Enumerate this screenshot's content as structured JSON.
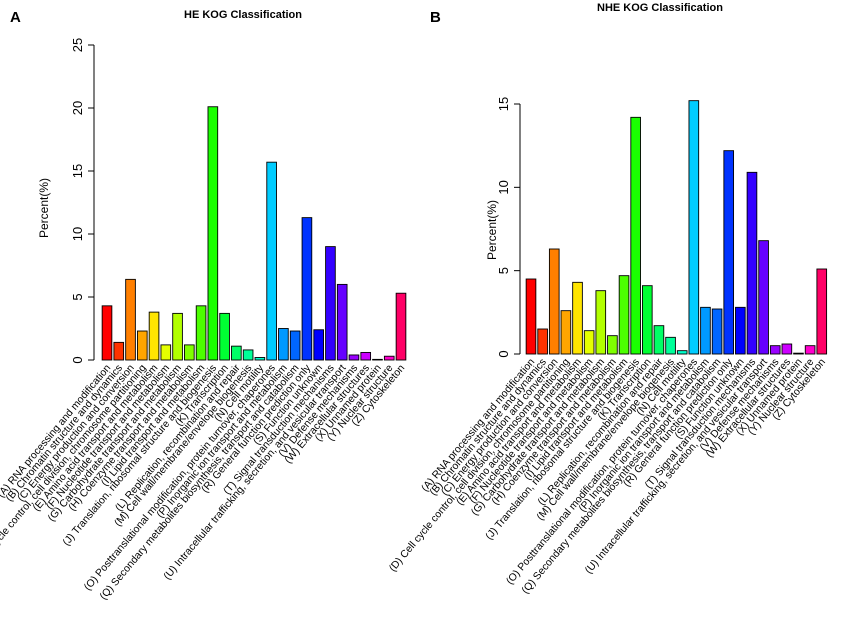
{
  "chart_data": [
    {
      "type": "bar",
      "panel_label": "A",
      "title": "HE KOG Classification",
      "xlabel": "",
      "ylabel": "Percent(%)",
      "ylim": [
        0,
        25
      ],
      "yticks": [
        "0",
        "5",
        "10",
        "15",
        "20",
        "25"
      ],
      "categories": [
        "(A) RNA processing and modification",
        "(B) Chromatin structure and dynamics",
        "(C) Energy production and conversion",
        "(D) Cell cycle control, cell division, chromosome partitioning",
        "(E) Amino acid transport and metabolism",
        "(F) Nucleotide transport and metabolism",
        "(G) Carbohydrate transport and metabolism",
        "(H) Coenzyme transport and metabolism",
        "(I) Lipid transport and metabolism",
        "(J) Translation, ribosomal structure and biogenesis",
        "(K) Transcription",
        "(L) Replication, recombination and repair",
        "(M) Cell wall/membrane/envelope biogenesis",
        "(N) Cell motility",
        "(O) Posttranslational modification, protein turnover, chaperones",
        "(P) Inorganic ion transport and metabolism",
        "(Q) Secondary metabolites biosynthesis, transport and catabolism",
        "(R) General function prediction only",
        "(S) Function unknown",
        "(T) Signal transduction mechanisms",
        "(U) Intracellular trafficking, secretion, and vesicular transport",
        "(V) Defense mechanisms",
        "(W) Extracellular structures",
        "(X) Unnamed protein",
        "(Y) Nuclear structure",
        "(Z) Cytoskeleton"
      ],
      "values": [
        4.3,
        1.4,
        6.4,
        2.3,
        3.8,
        1.2,
        3.7,
        1.2,
        4.3,
        20.1,
        3.7,
        1.1,
        0.8,
        0.2,
        15.7,
        2.5,
        2.3,
        11.3,
        2.4,
        9.0,
        6.0,
        0.4,
        0.6,
        0.05,
        0.3,
        5.3
      ],
      "colors": [
        "#FF0000",
        "#FF3300",
        "#FF7F00",
        "#FFA500",
        "#FFE500",
        "#E5FF00",
        "#B2FF00",
        "#7FFF00",
        "#4CFF00",
        "#1AFF00",
        "#00FF33",
        "#00FF66",
        "#00FF99",
        "#00FFCC",
        "#00CCFF",
        "#0099FF",
        "#0066FF",
        "#0033FF",
        "#0000FF",
        "#3300FF",
        "#6600FF",
        "#9900FF",
        "#CC00FF",
        "#FF00FF",
        "#FF00CC",
        "#FF0066"
      ]
    },
    {
      "type": "bar",
      "panel_label": "B",
      "title": "NHE KOG Classification",
      "xlabel": "",
      "ylabel": "Percent(%)",
      "ylim": [
        0,
        15
      ],
      "yticks": [
        "0",
        "5",
        "10",
        "15"
      ],
      "categories": [
        "(A) RNA processing and modification",
        "(B) Chromatin structure and dynamics",
        "(C) Energy production and conversion",
        "(D) Cell cycle control, cell division, chromosome partitioning",
        "(E) Amino acid transport and metabolism",
        "(F) Nucleotide transport and metabolism",
        "(G) Carbohydrate transport and metabolism",
        "(H) Coenzyme transport and metabolism",
        "(I) Lipid transport and metabolism",
        "(J) Translation, ribosomal structure and biogenesis",
        "(K) Transcription",
        "(L) Replication, recombination and repair",
        "(M) Cell wall/membrane/envelope biogenesis",
        "(N) Cell motility",
        "(O) Posttranslational modification, protein turnover, chaperones",
        "(P) Inorganic ion transport and metabolism",
        "(Q) Secondary metabolites biosynthesis, transport and catabolism",
        "(R) General function prediction only",
        "(S) Function unknown",
        "(T) Signal transduction mechanisms",
        "(U) Intracellular trafficking, secretion, and vesicular transport",
        "(V) Defense mechanisms",
        "(W) Extracellular structures",
        "(X) Unnamed protein",
        "(Y) Nuclear structure",
        "(Z) Cytoskeleton"
      ],
      "values": [
        4.5,
        1.5,
        6.3,
        2.6,
        4.3,
        1.4,
        3.8,
        1.1,
        4.7,
        14.2,
        4.1,
        1.7,
        1.0,
        0.2,
        15.2,
        2.8,
        2.7,
        12.2,
        2.8,
        10.9,
        6.8,
        0.5,
        0.6,
        0.05,
        0.5,
        5.1
      ],
      "colors": [
        "#FF0000",
        "#FF3300",
        "#FF7F00",
        "#FFA500",
        "#FFE500",
        "#E5FF00",
        "#B2FF00",
        "#7FFF00",
        "#4CFF00",
        "#1AFF00",
        "#00FF33",
        "#00FF66",
        "#00FF99",
        "#00FFCC",
        "#00CCFF",
        "#0099FF",
        "#0066FF",
        "#0033FF",
        "#0000FF",
        "#3300FF",
        "#6600FF",
        "#9900FF",
        "#CC00FF",
        "#FF00FF",
        "#FF00CC",
        "#FF0066"
      ]
    }
  ]
}
